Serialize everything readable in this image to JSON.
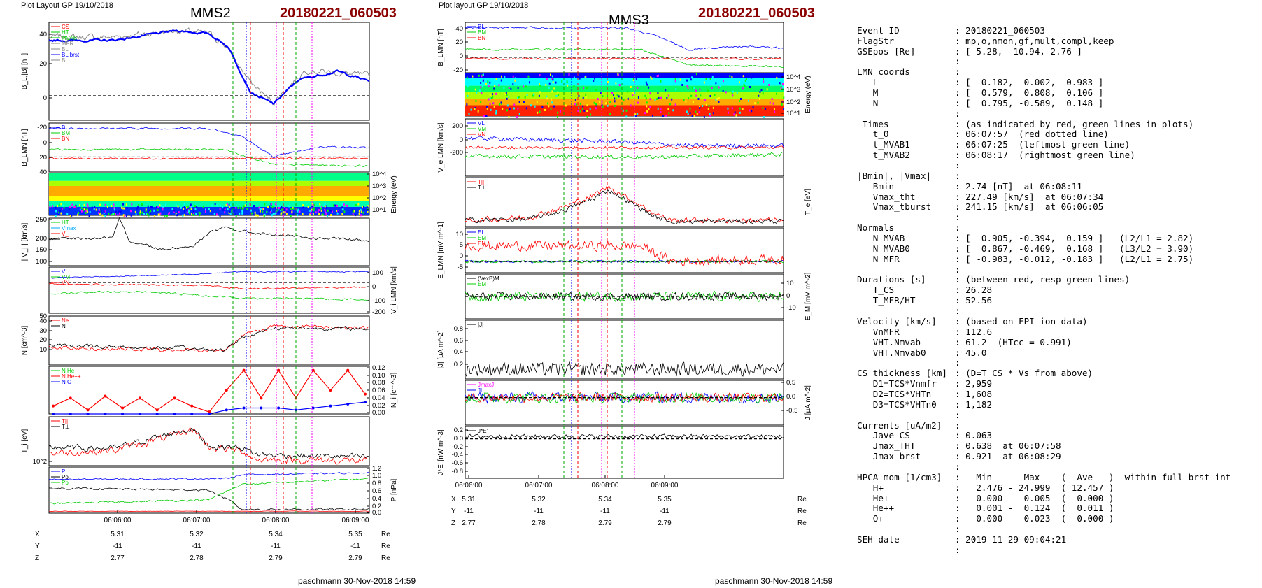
{
  "panels_left": {
    "header": "Plot Layout GP 19/10/2018",
    "spacecraft": "MMS2",
    "event": "20180221_060503",
    "footer": "paschmann 30-Nov-2018 14:59",
    "time_ticks": [
      "06:06:00",
      "06:07:00",
      "06:08:00",
      "06:09:00"
    ],
    "pos": {
      "labels": [
        "X",
        "Y",
        "Z"
      ],
      "unit": "Re",
      "X": [
        "5.31",
        "5.32",
        "5.34",
        "5.35"
      ],
      "Y": [
        "-11",
        "-11",
        "-11",
        "-11"
      ],
      "Z": [
        "2.77",
        "2.78",
        "2.79",
        "2.79"
      ]
    }
  },
  "panels_right": {
    "header": "Plot layout GP 19/10/2018",
    "spacecraft": "MMS3",
    "event": "20180221_060503",
    "footer": "paschmann 30-Nov-2018 14:59",
    "time_ticks": [
      "06:06:00",
      "06:07:00",
      "06:08:00",
      "06:09:00"
    ],
    "pos": {
      "labels": [
        "X",
        "Y",
        "Z"
      ],
      "unit": "Re",
      "X": [
        "5.31",
        "5.32",
        "5.34",
        "5.35"
      ],
      "Y": [
        "-11",
        "-11",
        "-11",
        "-11"
      ],
      "Z": [
        "2.77",
        "2.78",
        "2.79",
        "2.79"
      ]
    }
  },
  "colors": {
    "blue": "#0000ff",
    "green": "#00cc00",
    "red": "#ff0000",
    "black": "#000000",
    "gray": "#888888",
    "magenta": "#ff00ff"
  },
  "chart_data": [
    {
      "type": "line",
      "panel": "B_L |B|",
      "ylabel": "B_L,|B| [nT]",
      "ylim": [
        -15,
        45
      ],
      "yticks": [
        "0",
        "20",
        "40"
      ],
      "legend": [
        "CS",
        "HT",
        "MVAB",
        "MFR",
        "BL",
        "BL brst",
        "Bt"
      ]
    },
    {
      "type": "line",
      "panel": "B_LMN",
      "ylabel": "B_LMN [nT]",
      "ylim": [
        -20,
        45
      ],
      "yticks": [
        "-20",
        "0",
        "20",
        "40"
      ],
      "legend": [
        "BL",
        "BM",
        "BN"
      ]
    },
    {
      "type": "heatmap",
      "panel": "ion energy spectrogram",
      "ylabel": "Energy (eV)",
      "yticks": [
        "10^1",
        "10^2",
        "10^3",
        "10^4"
      ]
    },
    {
      "type": "line",
      "panel": "|Vi|",
      "ylabel": "| V_i | [km/s]",
      "ylim": [
        80,
        250
      ],
      "yticks": [
        "100",
        "150",
        "200",
        "250"
      ],
      "legend": [
        "HT",
        "Vmax",
        "V_i"
      ]
    },
    {
      "type": "line",
      "panel": "Vi LMN",
      "ylabel": "V_i LMN [km/s]",
      "ylim": [
        -200,
        100
      ],
      "yticks": [
        "100",
        "0",
        "-100",
        "-200"
      ],
      "legend": [
        "VL",
        "VM",
        "VN"
      ]
    },
    {
      "type": "line",
      "panel": "density",
      "ylabel": "N [cm^-3]",
      "ylim": [
        0,
        50
      ],
      "yticks": [
        "10",
        "20",
        "30",
        "40",
        "50"
      ],
      "legend": [
        "Ne",
        "Ni"
      ]
    },
    {
      "type": "line",
      "panel": "minor ions",
      "ylabel": "N_i [cm^-3]",
      "ylim": [
        0,
        0.12
      ],
      "yticks": [
        "0.12",
        "0.10",
        "0.08",
        "0.06",
        "0.04",
        "0.02",
        "0.00"
      ],
      "legend": [
        "N He+",
        "N He++",
        "N O+"
      ],
      "series": [
        {
          "name": "N He++",
          "values": [
            0.02,
            0.04,
            0.01,
            0.045,
            0.015,
            0.04,
            0.01,
            0.04,
            0.02,
            0.005,
            0.06,
            0.11,
            0.04,
            0.11,
            0.04,
            0.11,
            0.06,
            0.11,
            0.05
          ]
        },
        {
          "name": "N O+",
          "values": [
            0,
            0,
            0,
            0,
            0,
            0,
            0,
            0,
            0,
            0,
            0.01,
            0.015,
            0.015,
            0.015,
            0.01,
            0.015,
            0.02,
            0.025,
            0.03
          ]
        }
      ]
    },
    {
      "type": "line",
      "panel": "ion temperature",
      "ylabel": "T_i [eV]",
      "yticks": [
        "10^2"
      ],
      "legend": [
        "T||",
        "T⊥"
      ]
    },
    {
      "type": "line",
      "panel": "pressure",
      "ylabel": "P [nPa]",
      "ylim": [
        0,
        1.2
      ],
      "yticks": [
        "1.2",
        "1.0",
        "0.8",
        "0.6",
        "0.4",
        "0.2",
        "0.0"
      ],
      "legend": [
        "P",
        "Pp",
        "Pb"
      ]
    },
    {
      "type": "line",
      "panel": "B_LMN right",
      "ylabel": "B_LMN [nT]",
      "ylim": [
        -20,
        45
      ],
      "yticks": [
        "40",
        "20",
        "0",
        "-20"
      ],
      "legend": [
        "BL",
        "BM",
        "BN"
      ]
    },
    {
      "type": "heatmap",
      "panel": "electron spectrogram",
      "ylabel": "Energy (eV)",
      "yticks": [
        "10^4",
        "10^3",
        "10^2",
        "10^1"
      ]
    },
    {
      "type": "line",
      "panel": "Ve LMN",
      "ylabel": "V_e LMN [km/s]",
      "ylim": [
        -300,
        300
      ],
      "yticks": [
        "200",
        "0",
        "-200"
      ],
      "legend": [
        "VL",
        "VM",
        "VN"
      ]
    },
    {
      "type": "line",
      "panel": "Te",
      "ylabel": "T_e [eV]",
      "legend": [
        "T||",
        "T⊥"
      ]
    },
    {
      "type": "line",
      "panel": "E LMN",
      "ylabel": "E_LMN [mV m^-1]",
      "ylim": [
        -5,
        15
      ],
      "yticks": [
        "10",
        "5",
        "0",
        "-5"
      ],
      "legend": [
        "EL",
        "EM",
        "EN"
      ]
    },
    {
      "type": "line",
      "panel": "EM",
      "ylabel": "E_M [mV m^-2]",
      "ylim": [
        -15,
        15
      ],
      "yticks": [
        "10",
        "0",
        "-10"
      ],
      "legend": [
        "(VexB)M",
        "EM"
      ]
    },
    {
      "type": "line",
      "panel": "|J|",
      "ylabel": "|J| [µA m^-2]",
      "ylim": [
        0,
        0.9
      ],
      "yticks": [
        "0.8",
        "0.6",
        "0.4",
        "0.2"
      ],
      "legend": [
        "|J|"
      ]
    },
    {
      "type": "line",
      "panel": "J LMN",
      "ylabel": "J [µA m^-2]",
      "ylim": [
        -0.8,
        0.5
      ],
      "yticks": [
        "0.5",
        "0.0",
        "-0.5"
      ],
      "legend": [
        "JmaxJ",
        "JL"
      ]
    },
    {
      "type": "line",
      "panel": "J·E",
      "ylabel": "J*E' [nW m^-3]",
      "ylim": [
        -0.8,
        0.25
      ],
      "yticks": [
        "0.2",
        "0.0",
        "-0.2",
        "-0.4",
        "-0.6",
        "-0.8"
      ],
      "legend": [
        "J*E'"
      ]
    }
  ],
  "info": {
    "rows": [
      {
        "k": "",
        "v": ""
      },
      {
        "k": "Event ID",
        "v": ": 20180221_060503"
      },
      {
        "k": "FlagStr",
        "v": ": mp,o,nmon,gf,mult,compl,keep"
      },
      {
        "k": "GSEpos [Re]",
        "v": ": [ 5.28, -10.94, 2.76 ]"
      },
      {
        "k": "",
        "v": ":"
      },
      {
        "k": "LMN coords",
        "v": ":"
      },
      {
        "k": "   L",
        "v": ": [ -0.182,  0.002,  0.983 ]"
      },
      {
        "k": "   M",
        "v": ": [  0.579,  0.808,  0.106 ]"
      },
      {
        "k": "   N",
        "v": ": [  0.795, -0.589,  0.148 ]"
      },
      {
        "k": "",
        "v": ":"
      },
      {
        "k": " Times",
        "v": ": (as indicated by red, green lines in plots)"
      },
      {
        "k": "   t_0",
        "v": ": 06:07:57  (red dotted line)"
      },
      {
        "k": "   t_MVAB1",
        "v": ": 06:07:25  (leftmost green line)"
      },
      {
        "k": "   t_MVAB2",
        "v": ": 06:08:17  (rightmost green line)"
      },
      {
        "k": "",
        "v": ":"
      },
      {
        "k": "|Bmin|, |Vmax|",
        "v": ":"
      },
      {
        "k": "   Bmin",
        "v": ": 2.74 [nT]  at 06:08:11"
      },
      {
        "k": "   Vmax_tht",
        "v": ": 227.49 [km/s]  at 06:07:34"
      },
      {
        "k": "   Vmax_tburst",
        "v": ": 241.15 [km/s]  at 06:06:05"
      },
      {
        "k": "",
        "v": ":"
      },
      {
        "k": "Normals",
        "v": ":"
      },
      {
        "k": "   N MVAB",
        "v": ": [  0.905, -0.394,  0.159 ]   (L2/L1 = 2.82)"
      },
      {
        "k": "   N MVAB0",
        "v": ": [  0.867, -0.469,  0.168 ]   (L3/L2 = 3.90)"
      },
      {
        "k": "   N MFR",
        "v": ": [ -0.983, -0.012, -0.183 ]   (L2/L1 = 2.75)"
      },
      {
        "k": "",
        "v": ":"
      },
      {
        "k": "Durations [s]",
        "v": ": (between red, resp green lines)"
      },
      {
        "k": "   T_CS",
        "v": ": 26.28"
      },
      {
        "k": "   T_MFR/HT",
        "v": ": 52.56"
      },
      {
        "k": "",
        "v": ":"
      },
      {
        "k": "Velocity [km/s]",
        "v": ": (based on FPI ion data)"
      },
      {
        "k": "   VnMFR",
        "v": ": 112.6"
      },
      {
        "k": "   VHT.Nmvab",
        "v": ": 61.2  (HTcc = 0.991)"
      },
      {
        "k": "   VHT.Nmvab0",
        "v": ": 45.0"
      },
      {
        "k": "",
        "v": ":"
      },
      {
        "k": "CS thickness [km]",
        "v": ": (D=T_CS * Vs from above)"
      },
      {
        "k": "   D1=TCS*Vnmfr",
        "v": ": 2,959"
      },
      {
        "k": "   D2=TCS*VHTn",
        "v": ": 1,608"
      },
      {
        "k": "   D3=TCS*VHTn0",
        "v": ": 1,182"
      },
      {
        "k": "",
        "v": ":"
      },
      {
        "k": "Currents [uA/m2]",
        "v": ":"
      },
      {
        "k": "   Jave_CS",
        "v": ": 0.063"
      },
      {
        "k": "   Jmax_THT",
        "v": ": 0.638  at 06:07:58"
      },
      {
        "k": "   Jmax_brst",
        "v": ": 0.921  at 06:08:29"
      },
      {
        "k": "",
        "v": ":"
      },
      {
        "k": "HPCA mom [1/cm3]",
        "v": ":   Min   -  Max    (  Ave   )  within full brst int"
      },
      {
        "k": "   H+",
        "v": ":   2.476 - 24.999  ( 12.457 )"
      },
      {
        "k": "   He+",
        "v": ":   0.000 -  0.005  (  0.000 )"
      },
      {
        "k": "   He++",
        "v": ":   0.001 -  0.124  (  0.011 )"
      },
      {
        "k": "   O+",
        "v": ":   0.000 -  0.023  (  0.000 )"
      },
      {
        "k": "",
        "v": ":"
      },
      {
        "k": "SEH date",
        "v": ": 2019-11-29 09:04:21"
      },
      {
        "k": "",
        "v": ":"
      }
    ]
  }
}
